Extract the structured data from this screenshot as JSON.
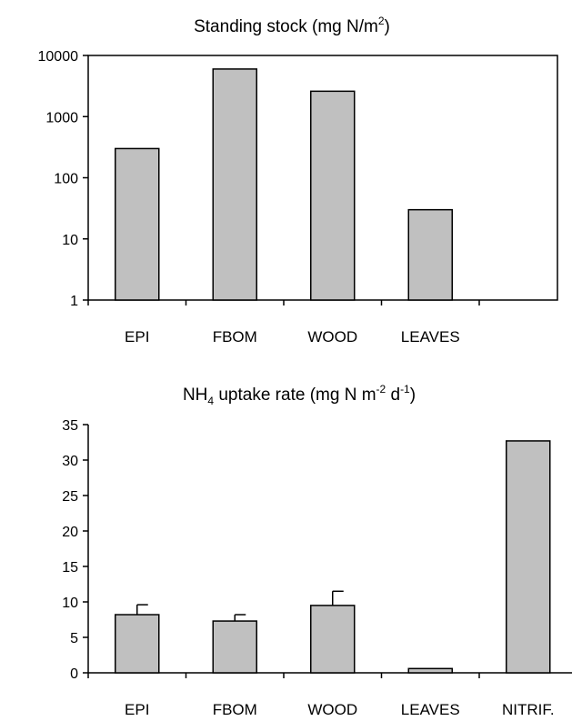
{
  "chart_data": [
    {
      "type": "bar",
      "title_parts": [
        "Standing stock (mg N/m",
        "2",
        ")"
      ],
      "yscale": "log",
      "ylim": [
        1,
        10000
      ],
      "yticks": [
        "1",
        "10",
        "100",
        "1000",
        "10000"
      ],
      "ytick_values": [
        1,
        10,
        100,
        1000,
        10000
      ],
      "categories": [
        "EPI",
        "FBOM",
        "WOOD",
        "LEAVES",
        ""
      ],
      "values": [
        300,
        6000,
        2600,
        30,
        null
      ],
      "grid": false
    },
    {
      "type": "bar",
      "title_parts": [
        "NH",
        "4",
        " uptake rate (mg N m",
        "-2",
        " d",
        "-1",
        ")"
      ],
      "yscale": "linear",
      "ylim": [
        0,
        35
      ],
      "yticks": [
        "0",
        "5",
        "10",
        "15",
        "20",
        "25",
        "30",
        "35"
      ],
      "ytick_values": [
        0,
        5,
        10,
        15,
        20,
        25,
        30,
        35
      ],
      "categories": [
        "EPI",
        "FBOM",
        "WOOD",
        "LEAVES",
        "NITRIF."
      ],
      "values": [
        8.2,
        7.3,
        9.5,
        0.6,
        32.7
      ],
      "errors": [
        1.4,
        0.9,
        2.0,
        0,
        0
      ],
      "grid": false
    }
  ]
}
